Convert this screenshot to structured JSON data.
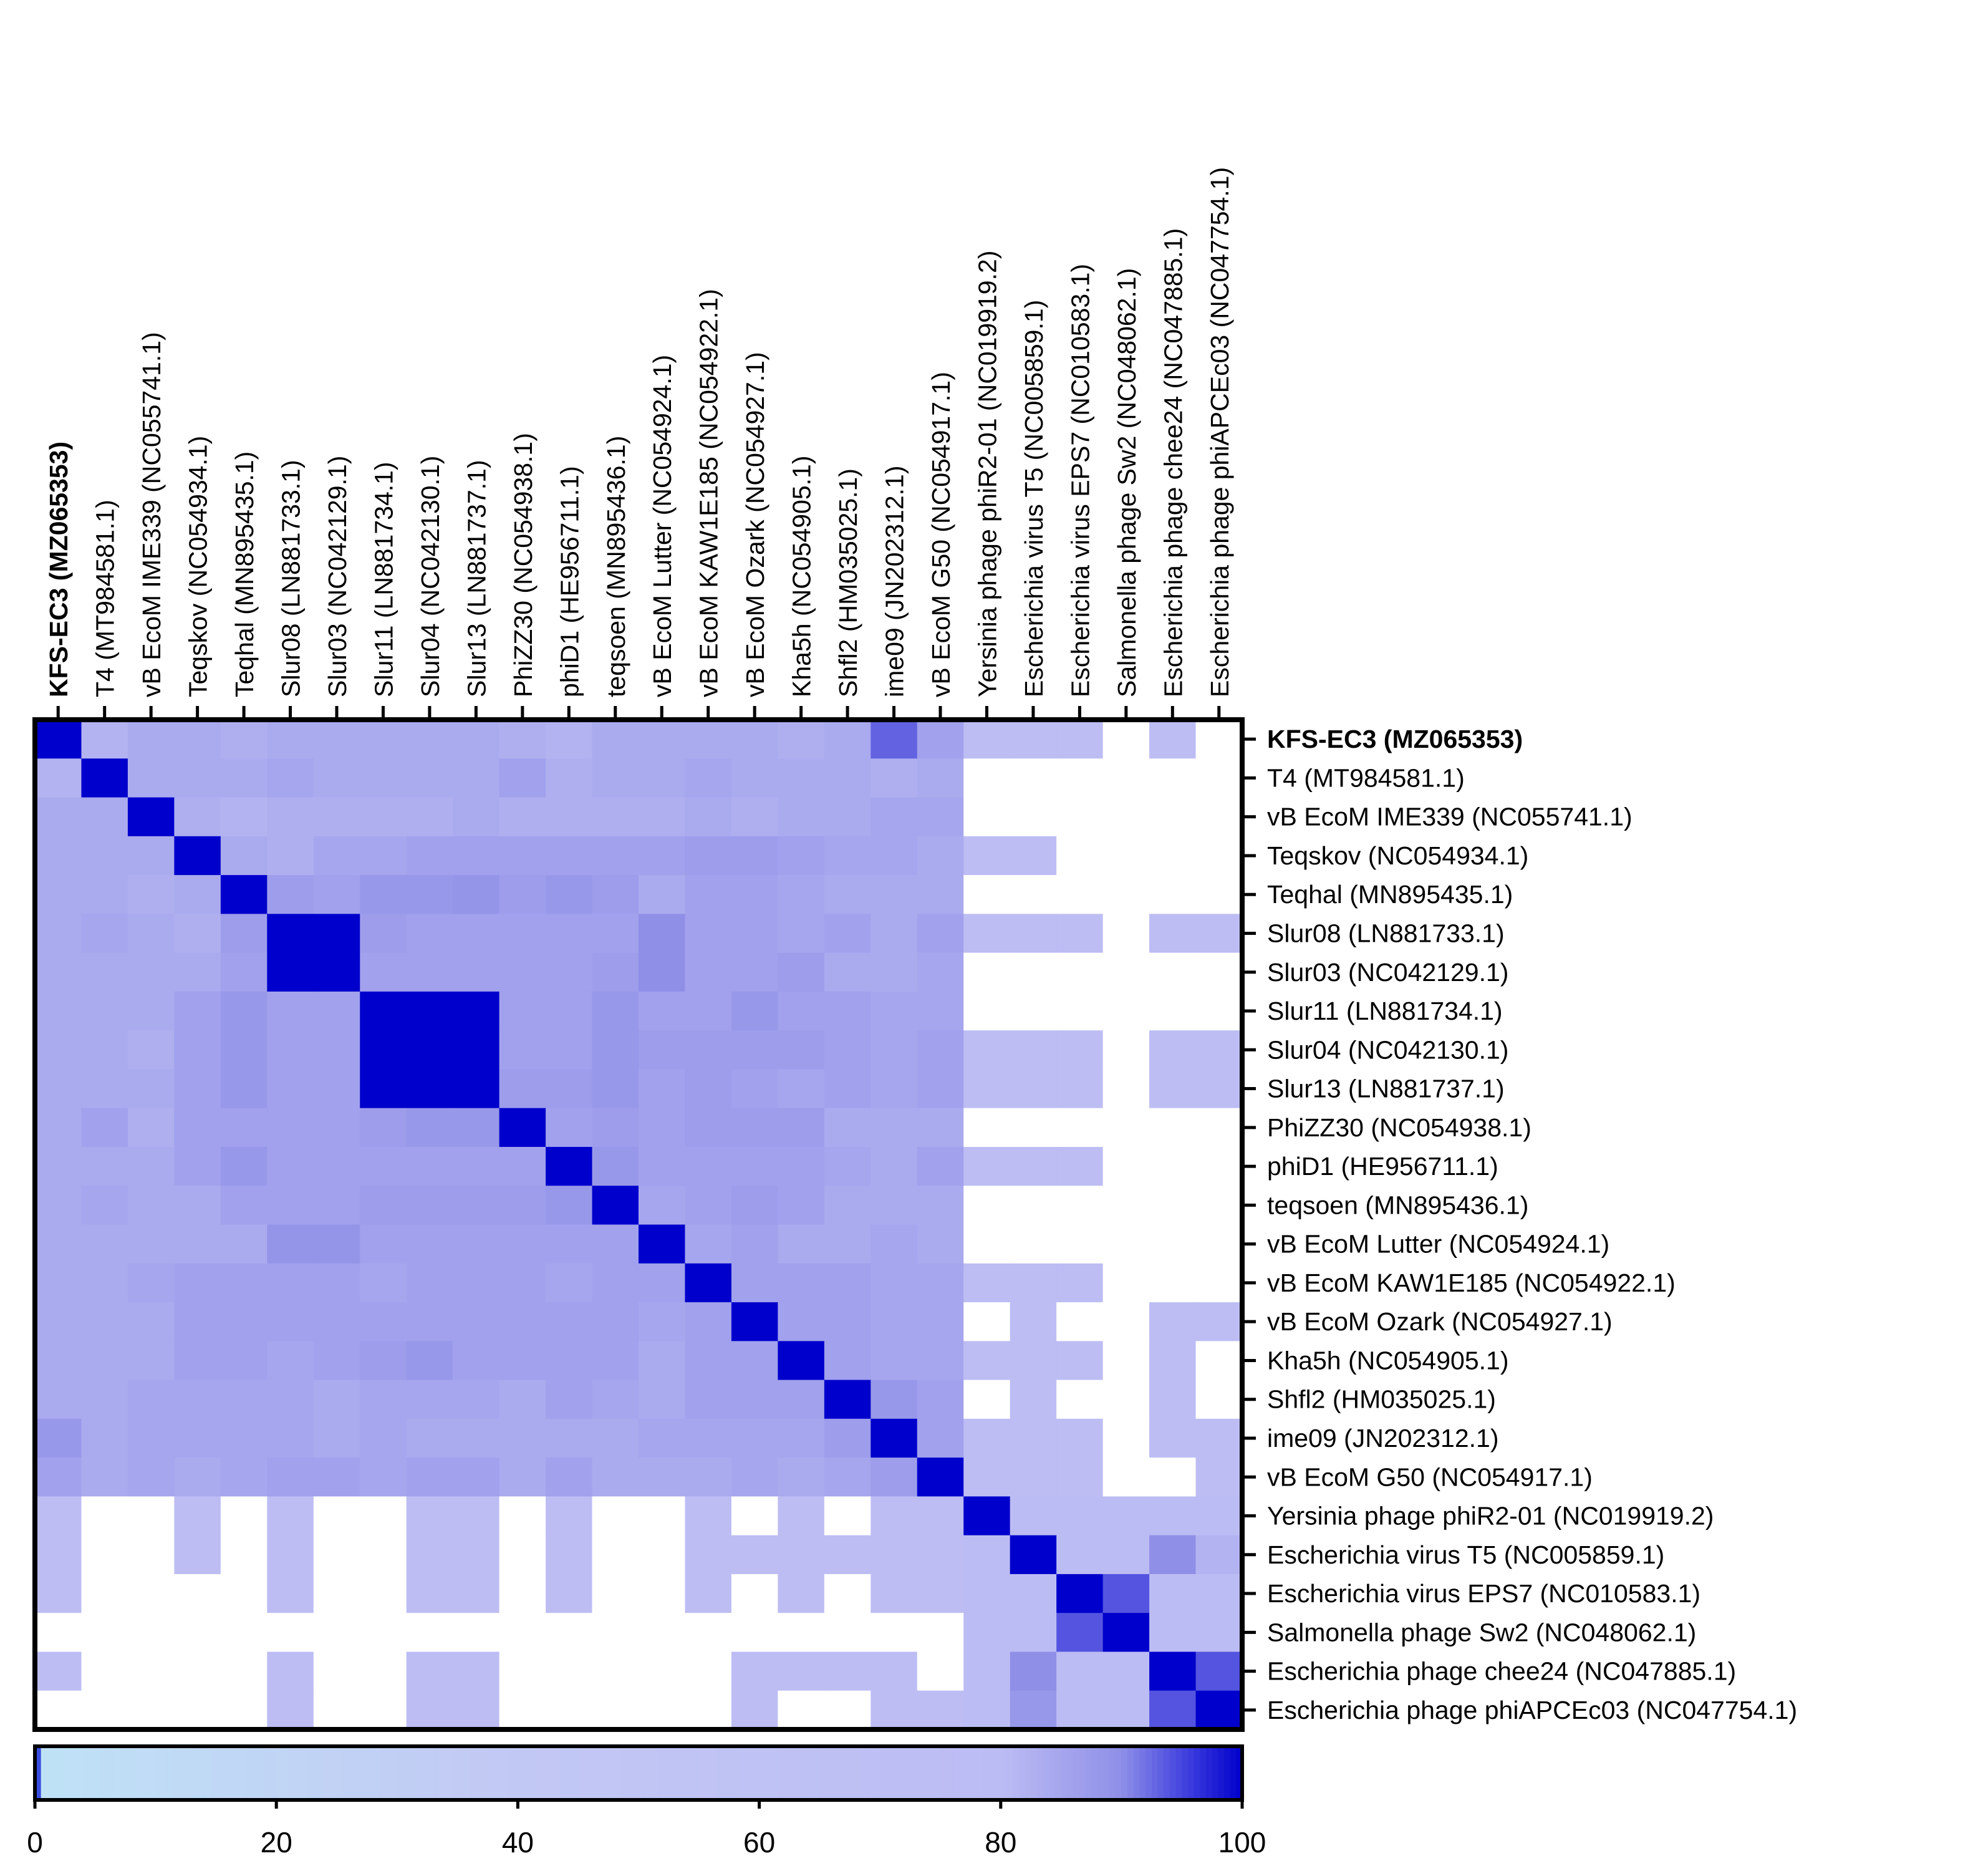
{
  "chart_data": {
    "type": "heatmap",
    "labels": [
      "KFS-EC3 (MZ065353)",
      "T4 (MT984581.1)",
      "vB EcoM IME339 (NC055741.1)",
      "Teqskov (NC054934.1)",
      "Teqhal (MN895435.1)",
      "Slur08 (LN881733.1)",
      "Slur03 (NC042129.1)",
      "Slur11 (LN881734.1)",
      "Slur04 (NC042130.1)",
      "Slur13 (LN881737.1)",
      "PhiZZ30 (NC054938.1)",
      "phiD1 (HE956711.1)",
      "teqsoen (MN895436.1)",
      "vB EcoM Lutter (NC054924.1)",
      "vB EcoM KAW1E185 (NC054922.1)",
      "vB EcoM Ozark (NC054927.1)",
      "Kha5h (NC054905.1)",
      "Shfl2 (HM035025.1)",
      "ime09 (JN202312.1)",
      "vB EcoM G50 (NC054917.1)",
      "Yersinia phage phiR2-01 (NC019919.2)",
      "Escherichia virus T5 (NC005859.1)",
      "Escherichia virus EPS7 (NC010583.1)",
      "Salmonella phage Sw2 (NC048062.1)",
      "Escherichia phage chee24 (NC047885.1)",
      "Escherichia phage phiAPCEc03 (NC047754.1)"
    ],
    "highlighted_label": "KFS-EC3 (MZ065353)",
    "values": [
      [
        100,
        82,
        84,
        84,
        83,
        84,
        84,
        84,
        84,
        84,
        83,
        82,
        84,
        84,
        84,
        84,
        83,
        84,
        93,
        86,
        76,
        76,
        76,
        0,
        76,
        0
      ],
      [
        82,
        100,
        84,
        84,
        84,
        85,
        84,
        84,
        84,
        84,
        86,
        83,
        84,
        84,
        85,
        84,
        84,
        84,
        83,
        84,
        0,
        0,
        0,
        0,
        0,
        0
      ],
      [
        84,
        84,
        100,
        83,
        82,
        83,
        83,
        83,
        83,
        84,
        83,
        83,
        83,
        83,
        84,
        83,
        84,
        84,
        85,
        85,
        0,
        0,
        0,
        0,
        0,
        0
      ],
      [
        84,
        84,
        84,
        100,
        84,
        83,
        85,
        85,
        86,
        86,
        86,
        86,
        86,
        86,
        87,
        87,
        86,
        85,
        85,
        84,
        76,
        76,
        0,
        0,
        0,
        0
      ],
      [
        84,
        84,
        83,
        84,
        100,
        87,
        86,
        88,
        88,
        89,
        87,
        88,
        87,
        84,
        86,
        86,
        85,
        84,
        84,
        84,
        0,
        0,
        0,
        0,
        0,
        0
      ],
      [
        84,
        85,
        84,
        83,
        87,
        100,
        100,
        87,
        86,
        86,
        86,
        86,
        86,
        90,
        86,
        86,
        85,
        86,
        84,
        86,
        76,
        76,
        76,
        0,
        76,
        76
      ],
      [
        84,
        84,
        84,
        84,
        86,
        100,
        100,
        86,
        86,
        86,
        86,
        86,
        87,
        90,
        86,
        86,
        87,
        84,
        84,
        85,
        0,
        0,
        0,
        0,
        0,
        0
      ],
      [
        84,
        84,
        84,
        86,
        88,
        86,
        86,
        100,
        100,
        100,
        86,
        86,
        88,
        86,
        86,
        88,
        86,
        86,
        85,
        85,
        0,
        0,
        0,
        0,
        0,
        0
      ],
      [
        84,
        84,
        83,
        86,
        88,
        86,
        86,
        100,
        100,
        100,
        86,
        86,
        88,
        87,
        87,
        87,
        87,
        86,
        85,
        86,
        76,
        76,
        76,
        0,
        76,
        76
      ],
      [
        84,
        84,
        84,
        86,
        88,
        86,
        86,
        100,
        100,
        100,
        87,
        87,
        88,
        86,
        87,
        86,
        85,
        86,
        85,
        86,
        76,
        76,
        76,
        0,
        76,
        76
      ],
      [
        84,
        86,
        83,
        86,
        86,
        86,
        86,
        87,
        88,
        88,
        100,
        86,
        87,
        86,
        87,
        87,
        87,
        84,
        84,
        84,
        0,
        0,
        0,
        0,
        0,
        0
      ],
      [
        84,
        84,
        84,
        86,
        88,
        86,
        86,
        86,
        86,
        86,
        86,
        100,
        88,
        86,
        86,
        86,
        86,
        85,
        84,
        86,
        76,
        76,
        76,
        0,
        0,
        0
      ],
      [
        84,
        85,
        84,
        84,
        86,
        86,
        86,
        87,
        87,
        87,
        87,
        88,
        100,
        85,
        86,
        87,
        86,
        84,
        84,
        84,
        0,
        0,
        0,
        0,
        0,
        0
      ],
      [
        84,
        84,
        84,
        84,
        84,
        89,
        89,
        86,
        86,
        86,
        86,
        86,
        86,
        100,
        85,
        86,
        84,
        84,
        85,
        84,
        0,
        0,
        0,
        0,
        0,
        0
      ],
      [
        84,
        84,
        85,
        86,
        86,
        86,
        86,
        85,
        86,
        86,
        86,
        85,
        86,
        86,
        100,
        86,
        86,
        86,
        85,
        85,
        76,
        76,
        76,
        0,
        0,
        0
      ],
      [
        84,
        84,
        84,
        86,
        86,
        86,
        86,
        86,
        86,
        86,
        86,
        86,
        86,
        85,
        86,
        100,
        86,
        86,
        85,
        85,
        0,
        76,
        0,
        0,
        76,
        76
      ],
      [
        84,
        84,
        84,
        86,
        86,
        85,
        86,
        87,
        88,
        86,
        86,
        86,
        86,
        84,
        86,
        86,
        100,
        86,
        85,
        85,
        76,
        76,
        76,
        0,
        76,
        0
      ],
      [
        84,
        84,
        85,
        85,
        85,
        85,
        84,
        85,
        85,
        85,
        84,
        86,
        85,
        84,
        86,
        86,
        86,
        100,
        88,
        86,
        0,
        76,
        0,
        0,
        76,
        0
      ],
      [
        88,
        84,
        85,
        85,
        85,
        85,
        84,
        85,
        84,
        84,
        84,
        84,
        84,
        85,
        85,
        85,
        85,
        87,
        100,
        86,
        76,
        76,
        76,
        0,
        76,
        76
      ],
      [
        86,
        84,
        85,
        84,
        85,
        86,
        86,
        85,
        86,
        86,
        84,
        86,
        84,
        84,
        84,
        85,
        84,
        85,
        87,
        100,
        76,
        76,
        76,
        0,
        0,
        76
      ],
      [
        76,
        0,
        0,
        76,
        0,
        76,
        0,
        0,
        76,
        76,
        0,
        76,
        0,
        0,
        76,
        0,
        76,
        0,
        76,
        76,
        100,
        80,
        80,
        80,
        80,
        80
      ],
      [
        76,
        0,
        0,
        76,
        0,
        76,
        0,
        0,
        76,
        76,
        0,
        76,
        0,
        0,
        76,
        76,
        76,
        76,
        76,
        76,
        80,
        100,
        80,
        80,
        90,
        82
      ],
      [
        76,
        0,
        0,
        0,
        0,
        76,
        0,
        0,
        76,
        76,
        0,
        76,
        0,
        0,
        76,
        0,
        76,
        0,
        76,
        76,
        80,
        80,
        100,
        94,
        80,
        80
      ],
      [
        0,
        0,
        0,
        0,
        0,
        0,
        0,
        0,
        0,
        0,
        0,
        0,
        0,
        0,
        0,
        0,
        0,
        0,
        0,
        0,
        80,
        80,
        94,
        100,
        80,
        80
      ],
      [
        76,
        0,
        0,
        0,
        0,
        76,
        0,
        0,
        76,
        76,
        0,
        0,
        0,
        0,
        0,
        76,
        76,
        76,
        76,
        0,
        80,
        90,
        80,
        80,
        100,
        94
      ],
      [
        0,
        0,
        0,
        0,
        0,
        76,
        0,
        0,
        76,
        76,
        0,
        0,
        0,
        0,
        0,
        76,
        0,
        0,
        76,
        76,
        80,
        88,
        80,
        80,
        94,
        100
      ]
    ],
    "colorbar": {
      "min": 0,
      "max": 100,
      "ticks": [
        "0",
        "20",
        "40",
        "60",
        "80",
        "100"
      ]
    },
    "colors": {
      "zero": "#ffffff",
      "low": "#bfe2f6",
      "mid": "#c2c8f4",
      "high": "#bcbcf4",
      "max": "#0000cc",
      "frame": "#000000"
    }
  }
}
